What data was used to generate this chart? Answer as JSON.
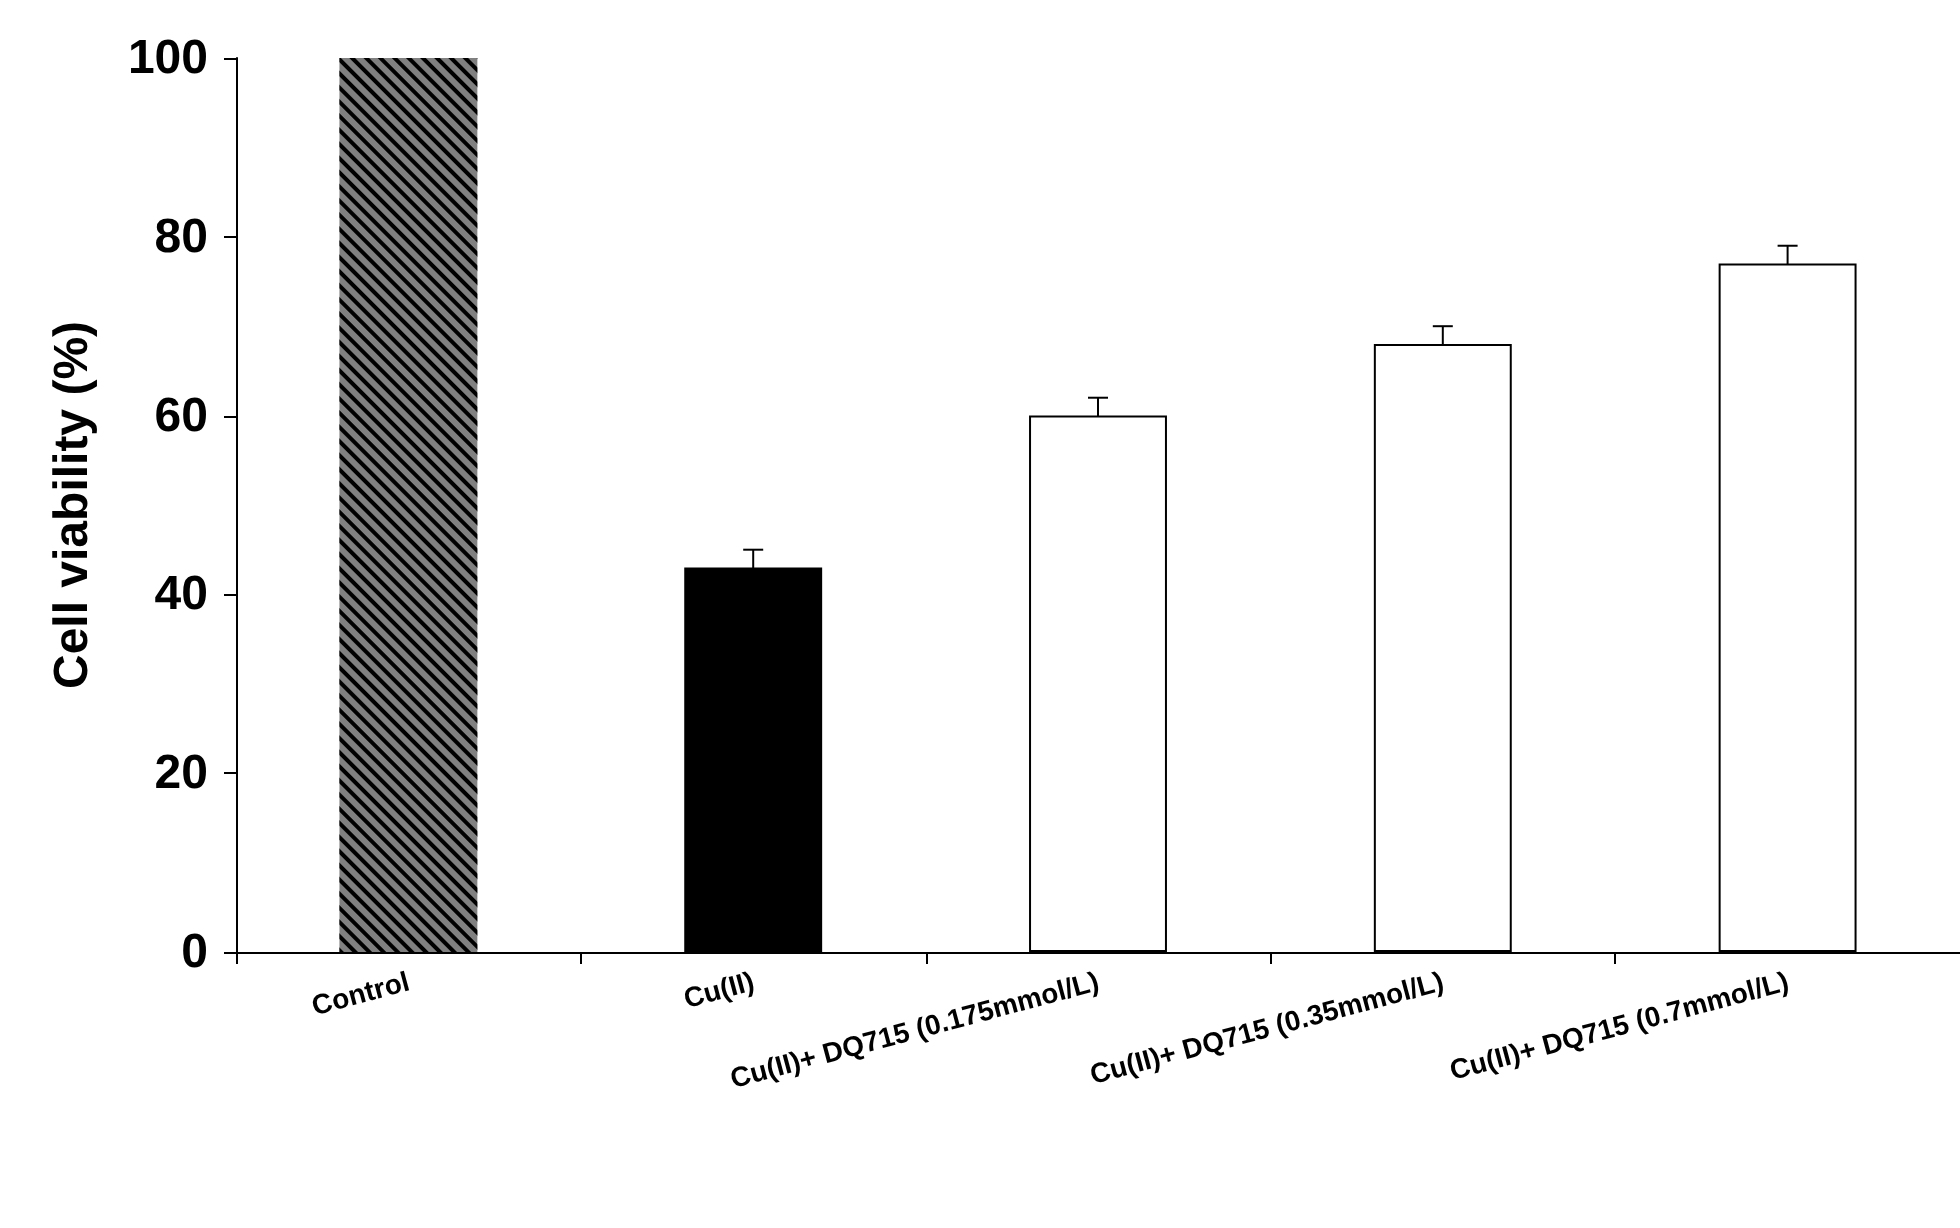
{
  "chart_data": {
    "type": "bar",
    "ylabel": "Cell viability (%)",
    "categories": [
      "Control",
      "Cu(II)",
      "Cu(II)+ DQ715 (0.175mmol/L)",
      "Cu(II)+ DQ715 (0.35mmol/L)",
      "Cu(II)+ DQ715 (0.7mmol/L)"
    ],
    "values": [
      100,
      43,
      60,
      68,
      77
    ],
    "colors": [
      "#808080",
      "#000000",
      "#ffffff",
      "#ffffff",
      "#ffffff"
    ],
    "errors": [
      null,
      2,
      2,
      2,
      2
    ],
    "ylim": [
      0,
      100
    ],
    "yticks": [
      0,
      20,
      40,
      60,
      80,
      100
    ]
  }
}
